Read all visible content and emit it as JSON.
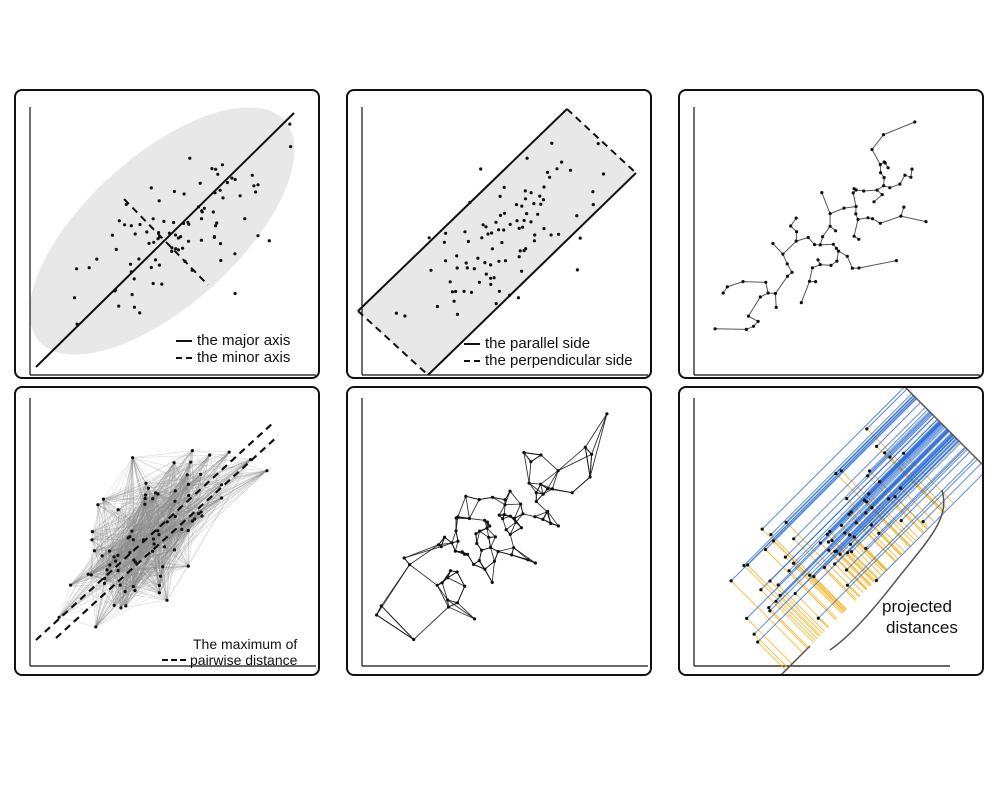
{
  "panels": {
    "p1": {
      "legend": [
        "the major axis",
        "the minor axis"
      ]
    },
    "p2": {
      "legend": [
        "the parallel side",
        "the perpendicular side"
      ]
    },
    "p4": {
      "legend": [
        "The maximum of",
        "pairwise distance"
      ]
    },
    "p6": {
      "label": [
        "projected",
        "distances"
      ]
    }
  },
  "colors": {
    "blue": "#2f6fd6",
    "orange": "#f3b21d",
    "ellipse": "#e8e8e8",
    "ink": "#111111"
  }
}
